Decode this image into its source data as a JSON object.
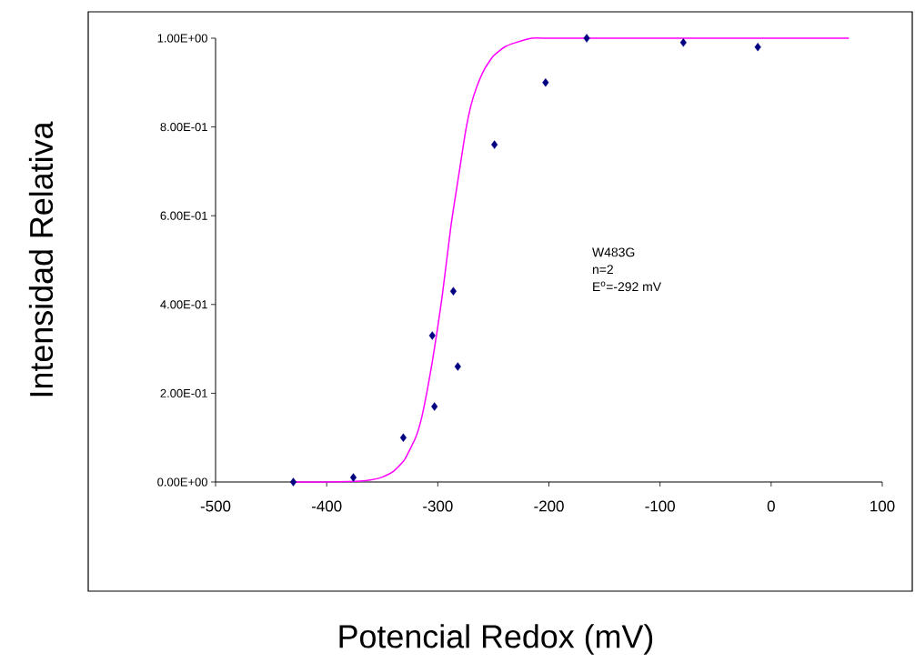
{
  "chart_data": {
    "type": "scatter",
    "xlabel": "Potencial Redox (mV)",
    "ylabel": "Intensidad Relativa",
    "xlim": [
      -500,
      100
    ],
    "xticks": [
      -500,
      -400,
      -300,
      -200,
      -100,
      0,
      100
    ],
    "ylim": [
      0,
      1
    ],
    "yticks": [
      {
        "value": 0,
        "label": "0.00E+00"
      },
      {
        "value": 0.2,
        "label": "2.00E-01"
      },
      {
        "value": 0.4,
        "label": "4.00E-01"
      },
      {
        "value": 0.6,
        "label": "6.00E-01"
      },
      {
        "value": 0.8,
        "label": "8.00E-01"
      },
      {
        "value": 1,
        "label": "1.00E+00"
      }
    ],
    "grid": false,
    "series": [
      {
        "color": "#000080",
        "marker": "diamond",
        "x": [
          -430,
          -376,
          -331,
          -305,
          -303,
          -286,
          -282,
          -249,
          -203,
          -166,
          -79,
          -12
        ],
        "values": [
          0.0,
          0.01,
          0.1,
          0.33,
          0.17,
          0.43,
          0.26,
          0.76,
          0.9,
          1.0,
          0.99,
          0.98
        ]
      },
      {
        "type": "line",
        "color": "#ff00ff",
        "marker": "none",
        "line_style": "solid",
        "x": [
          -430,
          -400,
          -380,
          -365,
          -350,
          -340,
          -330,
          -320,
          -315,
          -310,
          -305,
          -300,
          -296,
          -292,
          -288,
          -285,
          -280,
          -275,
          -270,
          -265,
          -258,
          -250,
          -240,
          -230,
          -215,
          -200,
          -150,
          -100,
          0,
          70
        ],
        "values": [
          0,
          0,
          0.001,
          0.003,
          0.011,
          0.024,
          0.05,
          0.1,
          0.14,
          0.2,
          0.27,
          0.35,
          0.42,
          0.5,
          0.58,
          0.63,
          0.71,
          0.79,
          0.85,
          0.89,
          0.93,
          0.96,
          0.98,
          0.99,
          1.0,
          1.0,
          1.0,
          1.0,
          1.0,
          1.0
        ]
      }
    ],
    "annotations": [
      "W483G",
      "n=2",
      "E$^{o}$=-292 mV"
    ]
  }
}
